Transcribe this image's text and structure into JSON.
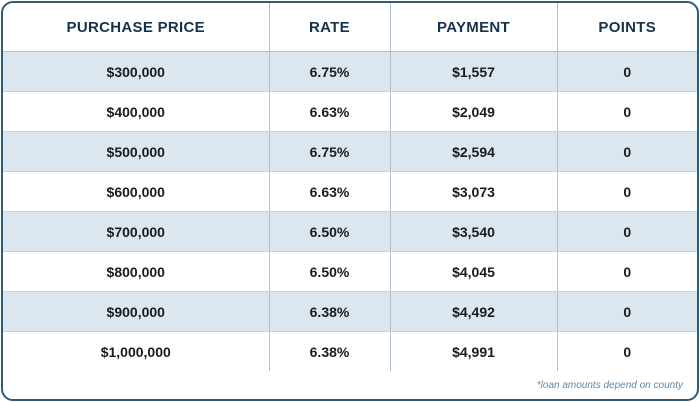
{
  "table": {
    "headers": [
      "PURCHASE PRICE",
      "RATE",
      "PAYMENT",
      "POINTS"
    ],
    "rows": [
      [
        "$300,000",
        "6.75%",
        "$1,557",
        "0"
      ],
      [
        "$400,000",
        "6.63%",
        "$2,049",
        "0"
      ],
      [
        "$500,000",
        "6.75%",
        "$2,594",
        "0"
      ],
      [
        "$600,000",
        "6.63%",
        "$3,073",
        "0"
      ],
      [
        "$700,000",
        "6.50%",
        "$3,540",
        "0"
      ],
      [
        "$800,000",
        "6.50%",
        "$4,045",
        "0"
      ],
      [
        "$900,000",
        "6.38%",
        "$4,492",
        "0"
      ],
      [
        "$1,000,000",
        "6.38%",
        "$4,991",
        "0"
      ]
    ]
  },
  "footnote": "*loan amounts depend on county",
  "colors": {
    "border": "#2e5a7c",
    "header_text": "#17324d",
    "alt_row": "#dce6ee",
    "footnote_text": "#5f87a6"
  }
}
